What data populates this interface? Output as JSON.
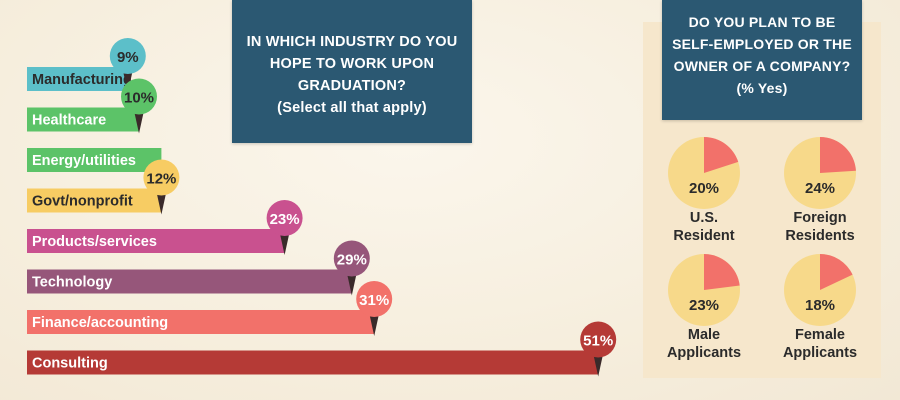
{
  "chart_data": [
    {
      "type": "bar",
      "title": "IN WHICH INDUSTRY DO YOU HOPE TO WORK UPON GRADUATION?",
      "subtitle": "(Select all that apply)",
      "categories": [
        "Manufacturing",
        "Healthcare",
        "Energy/utilities",
        "Govt/nonprofit",
        "Products/services",
        "Technology",
        "Finance/accounting",
        "Consulting"
      ],
      "values": [
        9,
        10,
        12,
        12,
        23,
        29,
        31,
        51
      ],
      "value_labels": [
        "9%",
        "10%",
        "",
        "12%",
        "23%",
        "29%",
        "31%",
        "51%"
      ],
      "colors": [
        "#5cbfc9",
        "#5cc368",
        "#5cc368",
        "#f7cc63",
        "#c9518f",
        "#96567a",
        "#f2716a",
        "#b53a36"
      ],
      "marker_colors": [
        "#5cbfc9",
        "#5cc368",
        "#5cc368",
        "#f7cc63",
        "#c9518f",
        "#96567a",
        "#f2716a",
        "#b53a36"
      ]
    },
    {
      "type": "pie",
      "title": "DO YOU PLAN TO BE SELF-EMPLOYED OR THE OWNER OF A COMPANY?",
      "subtitle": "(% Yes)",
      "items": [
        {
          "label_line1": "U.S.",
          "label_line2": "Resident",
          "value": 20,
          "value_label": "20%"
        },
        {
          "label_line1": "Foreign",
          "label_line2": "Residents",
          "value": 24,
          "value_label": "24%"
        },
        {
          "label_line1": "Male",
          "label_line2": "Applicants",
          "value": 23,
          "value_label": "23%"
        },
        {
          "label_line1": "Female",
          "label_line2": "Applicants",
          "value": 18,
          "value_label": "18%"
        }
      ],
      "slice_color": "#f2716a",
      "base_color": "#f7d98a"
    }
  ],
  "question": {
    "line1": "IN WHICH INDUSTRY DO YOU",
    "line2": "HOPE TO WORK UPON",
    "line3": "GRADUATION?",
    "line4": "(Select all that apply)"
  },
  "plan": {
    "line1": "DO YOU PLAN TO BE",
    "line2": "SELF-EMPLOYED OR THE",
    "line3": "OWNER OF A COMPANY?",
    "line4": "(% Yes)"
  }
}
